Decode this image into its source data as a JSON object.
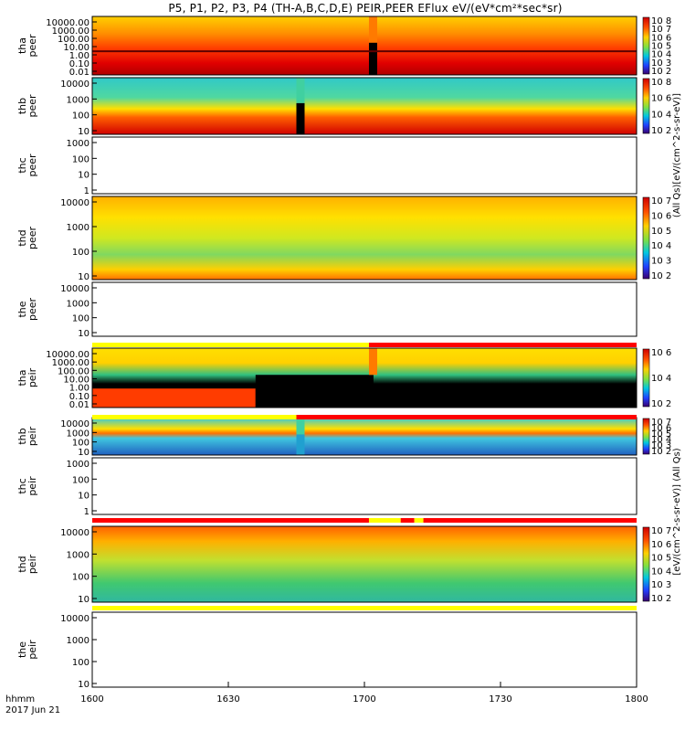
{
  "title": "P5, P1, P2, P3, P4 (TH-A,B,C,D,E) PEIR,PEER EFlux eV/(eV*cm²*sec*sr)",
  "x_axis": {
    "row_label": "hhmm",
    "date_label": "2017 Jun 21",
    "ticks": [
      "1600",
      "1630",
      "1700",
      "1730",
      "1800"
    ]
  },
  "colorbar_labels": {
    "upper": "(All Qs)[eV/(cm^2-s-sr-eV)]",
    "lower": "[eV/(cm^2-s-sr-eV)] (All Qs)"
  },
  "colors": {
    "spectrogram_high": "#d40000",
    "spectrogram_mid": "#ffe800",
    "spectrogram_low": "#00c8e6",
    "fill_black": "#000000",
    "mode_bar_red": "#ff0000",
    "mode_bar_yellow": "#ffff00"
  },
  "chart_data": {
    "type": "heatmap",
    "title": "P5, P1, P2, P3, P4 (TH-A,B,C,D,E) PEIR,PEER EFlux eV/(eV*cm²*sec*sr)",
    "x_range": [
      "16:00",
      "18:00"
    ],
    "x_ticks": [
      "1600",
      "1630",
      "1700",
      "1730",
      "1800"
    ],
    "panels": [
      {
        "probe": "tha",
        "species": "peer",
        "label": [
          "tha",
          "peer"
        ],
        "scale": "log",
        "y_ticks": [
          "10000.00",
          "1000.00",
          "100.00",
          "10.00",
          "1.00",
          "0.10",
          "0.01"
        ],
        "colorbar_ticks": [
          "10^8",
          "10^7",
          "10^6",
          "10^5",
          "10^4",
          "10^3",
          "10^2"
        ],
        "has_data": true
      },
      {
        "probe": "thb",
        "species": "peer",
        "label": [
          "thb",
          "peer"
        ],
        "scale": "log",
        "y_ticks": [
          "10000",
          "1000",
          "100",
          "10"
        ],
        "colorbar_ticks": [
          "10^8",
          "10^6",
          "10^4",
          "10^2"
        ],
        "has_data": true
      },
      {
        "probe": "thc",
        "species": "peer",
        "label": [
          "thc",
          "peer"
        ],
        "scale": "log",
        "y_ticks": [
          "1000",
          "100",
          "10",
          "1"
        ],
        "colorbar_ticks": [],
        "has_data": false
      },
      {
        "probe": "thd",
        "species": "peer",
        "label": [
          "thd",
          "peer"
        ],
        "scale": "log",
        "y_ticks": [
          "10000",
          "1000",
          "100",
          "10"
        ],
        "colorbar_ticks": [
          "10^7",
          "10^6",
          "10^5",
          "10^4",
          "10^3",
          "10^2"
        ],
        "has_data": true
      },
      {
        "probe": "the",
        "species": "peer",
        "label": [
          "the",
          "peer"
        ],
        "scale": "log",
        "y_ticks": [
          "10000",
          "1000",
          "100",
          "10"
        ],
        "colorbar_ticks": [],
        "has_data": false
      },
      {
        "probe": "tha",
        "species": "peir",
        "label": [
          "tha",
          "peir"
        ],
        "scale": "log",
        "y_ticks": [
          "10000.00",
          "1000.00",
          "100.00",
          "10.00",
          "1.00",
          "0.10",
          "0.01"
        ],
        "colorbar_ticks": [
          "10^6",
          "10^4",
          "10^2"
        ],
        "has_data": true
      },
      {
        "probe": "thb",
        "species": "peir",
        "label": [
          "thb",
          "peir"
        ],
        "scale": "log",
        "y_ticks": [
          "10000",
          "1000",
          "100",
          "10"
        ],
        "colorbar_ticks": [
          "10^7",
          "10^6",
          "10^5",
          "10^4",
          "10^3",
          "10^2"
        ],
        "has_data": true
      },
      {
        "probe": "thc",
        "species": "peir",
        "label": [
          "thc",
          "peir"
        ],
        "scale": "log",
        "y_ticks": [
          "1000",
          "100",
          "10",
          "1"
        ],
        "colorbar_ticks": [],
        "has_data": false
      },
      {
        "probe": "thd",
        "species": "peir",
        "label": [
          "thd",
          "peir"
        ],
        "scale": "log",
        "y_ticks": [
          "10000",
          "1000",
          "100",
          "10"
        ],
        "colorbar_ticks": [
          "10^7",
          "10^6",
          "10^5",
          "10^4",
          "10^3",
          "10^2"
        ],
        "has_data": true
      },
      {
        "probe": "the",
        "species": "peir",
        "label": [
          "the",
          "peir"
        ],
        "scale": "log",
        "y_ticks": [
          "10000",
          "1000",
          "100",
          "10"
        ],
        "colorbar_ticks": [],
        "has_data": false
      }
    ],
    "mode_bars": [
      {
        "before_panel": 5,
        "segments": [
          {
            "from": "16:00",
            "to": "17:01",
            "color": "yellow"
          },
          {
            "from": "17:01",
            "to": "18:00",
            "color": "red"
          }
        ]
      },
      {
        "before_panel": 6,
        "segments": [
          {
            "from": "16:00",
            "to": "16:45",
            "color": "yellow"
          },
          {
            "from": "16:45",
            "to": "18:00",
            "color": "red"
          }
        ]
      },
      {
        "before_panel": 8,
        "segments": [
          {
            "from": "16:00",
            "to": "17:01",
            "color": "red"
          },
          {
            "from": "17:01",
            "to": "17:08",
            "color": "yellow"
          },
          {
            "from": "17:08",
            "to": "17:11",
            "color": "red"
          },
          {
            "from": "17:11",
            "to": "17:13",
            "color": "yellow"
          },
          {
            "from": "17:13",
            "to": "18:00",
            "color": "red"
          }
        ]
      },
      {
        "before_panel": 9,
        "segments": [
          {
            "from": "16:00",
            "to": "18:00",
            "color": "yellow"
          }
        ]
      }
    ]
  }
}
